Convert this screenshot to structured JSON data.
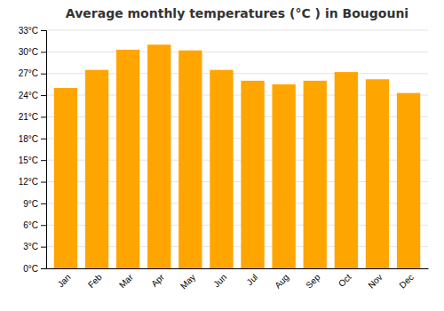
{
  "chart_data": {
    "type": "bar",
    "title": "Average monthly temperatures (°C ) in Bougouni",
    "categories": [
      "Jan",
      "Feb",
      "Mar",
      "Apr",
      "May",
      "Jun",
      "Jul",
      "Aug",
      "Sep",
      "Oct",
      "Nov",
      "Dec"
    ],
    "values": [
      25.0,
      27.5,
      30.3,
      31.0,
      30.2,
      27.5,
      26.0,
      25.5,
      26.0,
      27.2,
      26.2,
      24.3
    ],
    "color": "#FFA500",
    "ylim": [
      0,
      33
    ],
    "yticks": [
      {
        "value": 0,
        "label": "0°C"
      },
      {
        "value": 3,
        "label": "3°C"
      },
      {
        "value": 6,
        "label": "6°C"
      },
      {
        "value": 9,
        "label": "9°C"
      },
      {
        "value": 12,
        "label": "12°C"
      },
      {
        "value": 15,
        "label": "15°C"
      },
      {
        "value": 18,
        "label": "18°C"
      },
      {
        "value": 21,
        "label": "21°C"
      },
      {
        "value": 24,
        "label": "24°C"
      },
      {
        "value": 27,
        "label": "27°C"
      },
      {
        "value": 30,
        "label": "30°C"
      },
      {
        "value": 33,
        "label": "33°C"
      }
    ],
    "grid": true
  }
}
